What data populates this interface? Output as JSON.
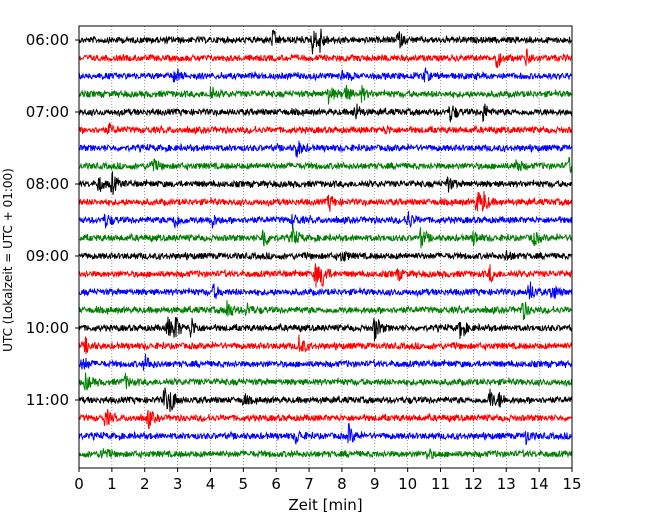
{
  "chart_data": {
    "type": "line",
    "xlabel": "Zeit  [min]",
    "ylabel": "UTC (Lokalzeit = UTC + 01:00)",
    "xlim": [
      0,
      15
    ],
    "x_ticks": [
      0,
      1,
      2,
      3,
      4,
      5,
      6,
      7,
      8,
      9,
      10,
      11,
      12,
      13,
      14,
      15
    ],
    "x_tick_labels": [
      "0",
      "1",
      "2",
      "3",
      "4",
      "5",
      "6",
      "7",
      "8",
      "9",
      "10",
      "11",
      "12",
      "13",
      "14",
      "15"
    ],
    "y_tick_labels": [
      "06:00",
      "07:00",
      "08:00",
      "09:00",
      "10:00",
      "11:00"
    ],
    "y_tick_rows": [
      0,
      4,
      8,
      12,
      16,
      20
    ],
    "grid": "vertical dotted",
    "colors": [
      "#000000",
      "#ff0000",
      "#0000ff",
      "#008000"
    ],
    "traces": [
      {
        "start_utc": "06:00",
        "events": [
          [
            5.9,
            0.6
          ],
          [
            7.1,
            0.9
          ],
          [
            7.3,
            1.0
          ],
          [
            9.7,
            0.7
          ]
        ]
      },
      {
        "start_utc": "06:15",
        "events": [
          [
            12.7,
            0.7
          ],
          [
            13.6,
            0.6
          ]
        ]
      },
      {
        "start_utc": "06:30",
        "events": [
          [
            2.9,
            0.5
          ],
          [
            8.0,
            0.4
          ],
          [
            10.5,
            0.4
          ]
        ]
      },
      {
        "start_utc": "06:45",
        "events": [
          [
            4.0,
            0.6
          ],
          [
            7.6,
            0.7
          ],
          [
            8.1,
            0.7
          ],
          [
            8.6,
            0.5
          ]
        ]
      },
      {
        "start_utc": "07:00",
        "events": [
          [
            8.4,
            0.7
          ],
          [
            11.3,
            0.7
          ],
          [
            12.3,
            0.7
          ]
        ]
      },
      {
        "start_utc": "07:15",
        "events": [
          [
            0.9,
            0.4
          ],
          [
            9.3,
            0.3
          ]
        ]
      },
      {
        "start_utc": "07:30",
        "events": [
          [
            6.6,
            0.8
          ]
        ]
      },
      {
        "start_utc": "07:45",
        "events": [
          [
            2.2,
            0.6
          ],
          [
            13.3,
            0.6
          ],
          [
            14.9,
            0.5
          ]
        ]
      },
      {
        "start_utc": "08:00",
        "events": [
          [
            0.6,
            0.6
          ],
          [
            1.0,
            0.8
          ],
          [
            11.2,
            0.6
          ]
        ]
      },
      {
        "start_utc": "08:15",
        "events": [
          [
            7.6,
            0.6
          ],
          [
            12.1,
            0.9
          ],
          [
            12.3,
            0.7
          ]
        ]
      },
      {
        "start_utc": "08:30",
        "events": [
          [
            0.8,
            0.5
          ],
          [
            2.9,
            0.6
          ],
          [
            4.0,
            0.7
          ],
          [
            6.5,
            0.5
          ],
          [
            10.0,
            0.7
          ]
        ]
      },
      {
        "start_utc": "08:45",
        "events": [
          [
            5.6,
            0.9
          ],
          [
            6.5,
            0.7
          ],
          [
            10.4,
            0.7
          ],
          [
            12.0,
            0.5
          ],
          [
            13.8,
            0.6
          ]
        ]
      },
      {
        "start_utc": "09:00",
        "events": [
          [
            8.0,
            0.4
          ],
          [
            13.0,
            0.4
          ]
        ]
      },
      {
        "start_utc": "09:15",
        "events": [
          [
            7.2,
            1.0
          ],
          [
            7.4,
            0.8
          ],
          [
            9.7,
            0.4
          ],
          [
            12.5,
            0.6
          ]
        ]
      },
      {
        "start_utc": "09:30",
        "events": [
          [
            4.1,
            0.5
          ],
          [
            13.7,
            0.8
          ],
          [
            14.4,
            0.7
          ]
        ]
      },
      {
        "start_utc": "09:45",
        "events": [
          [
            4.5,
            0.8
          ],
          [
            5.1,
            0.5
          ],
          [
            13.5,
            0.8
          ]
        ]
      },
      {
        "start_utc": "10:00",
        "events": [
          [
            2.7,
            0.8
          ],
          [
            2.9,
            1.0
          ],
          [
            3.4,
            0.8
          ],
          [
            9.0,
            1.0
          ],
          [
            11.6,
            0.8
          ]
        ]
      },
      {
        "start_utc": "10:15",
        "events": [
          [
            0.2,
            0.5
          ],
          [
            6.7,
            0.8
          ]
        ]
      },
      {
        "start_utc": "10:30",
        "events": [
          [
            0.1,
            0.6
          ],
          [
            2.0,
            0.7
          ]
        ]
      },
      {
        "start_utc": "10:45",
        "events": [
          [
            0.2,
            0.6
          ],
          [
            1.4,
            0.5
          ]
        ]
      },
      {
        "start_utc": "11:00",
        "events": [
          [
            2.6,
            1.0
          ],
          [
            2.8,
            0.7
          ],
          [
            5.0,
            0.4
          ],
          [
            12.5,
            0.8
          ],
          [
            12.8,
            0.5
          ]
        ]
      },
      {
        "start_utc": "11:15",
        "events": [
          [
            0.8,
            0.7
          ],
          [
            2.1,
            0.7
          ]
        ]
      },
      {
        "start_utc": "11:30",
        "events": [
          [
            6.6,
            0.5
          ],
          [
            8.2,
            0.8
          ],
          [
            13.6,
            0.5
          ]
        ]
      },
      {
        "start_utc": "11:45",
        "events": [
          [
            0.7,
            0.5
          ],
          [
            10.6,
            0.4
          ]
        ]
      }
    ]
  }
}
